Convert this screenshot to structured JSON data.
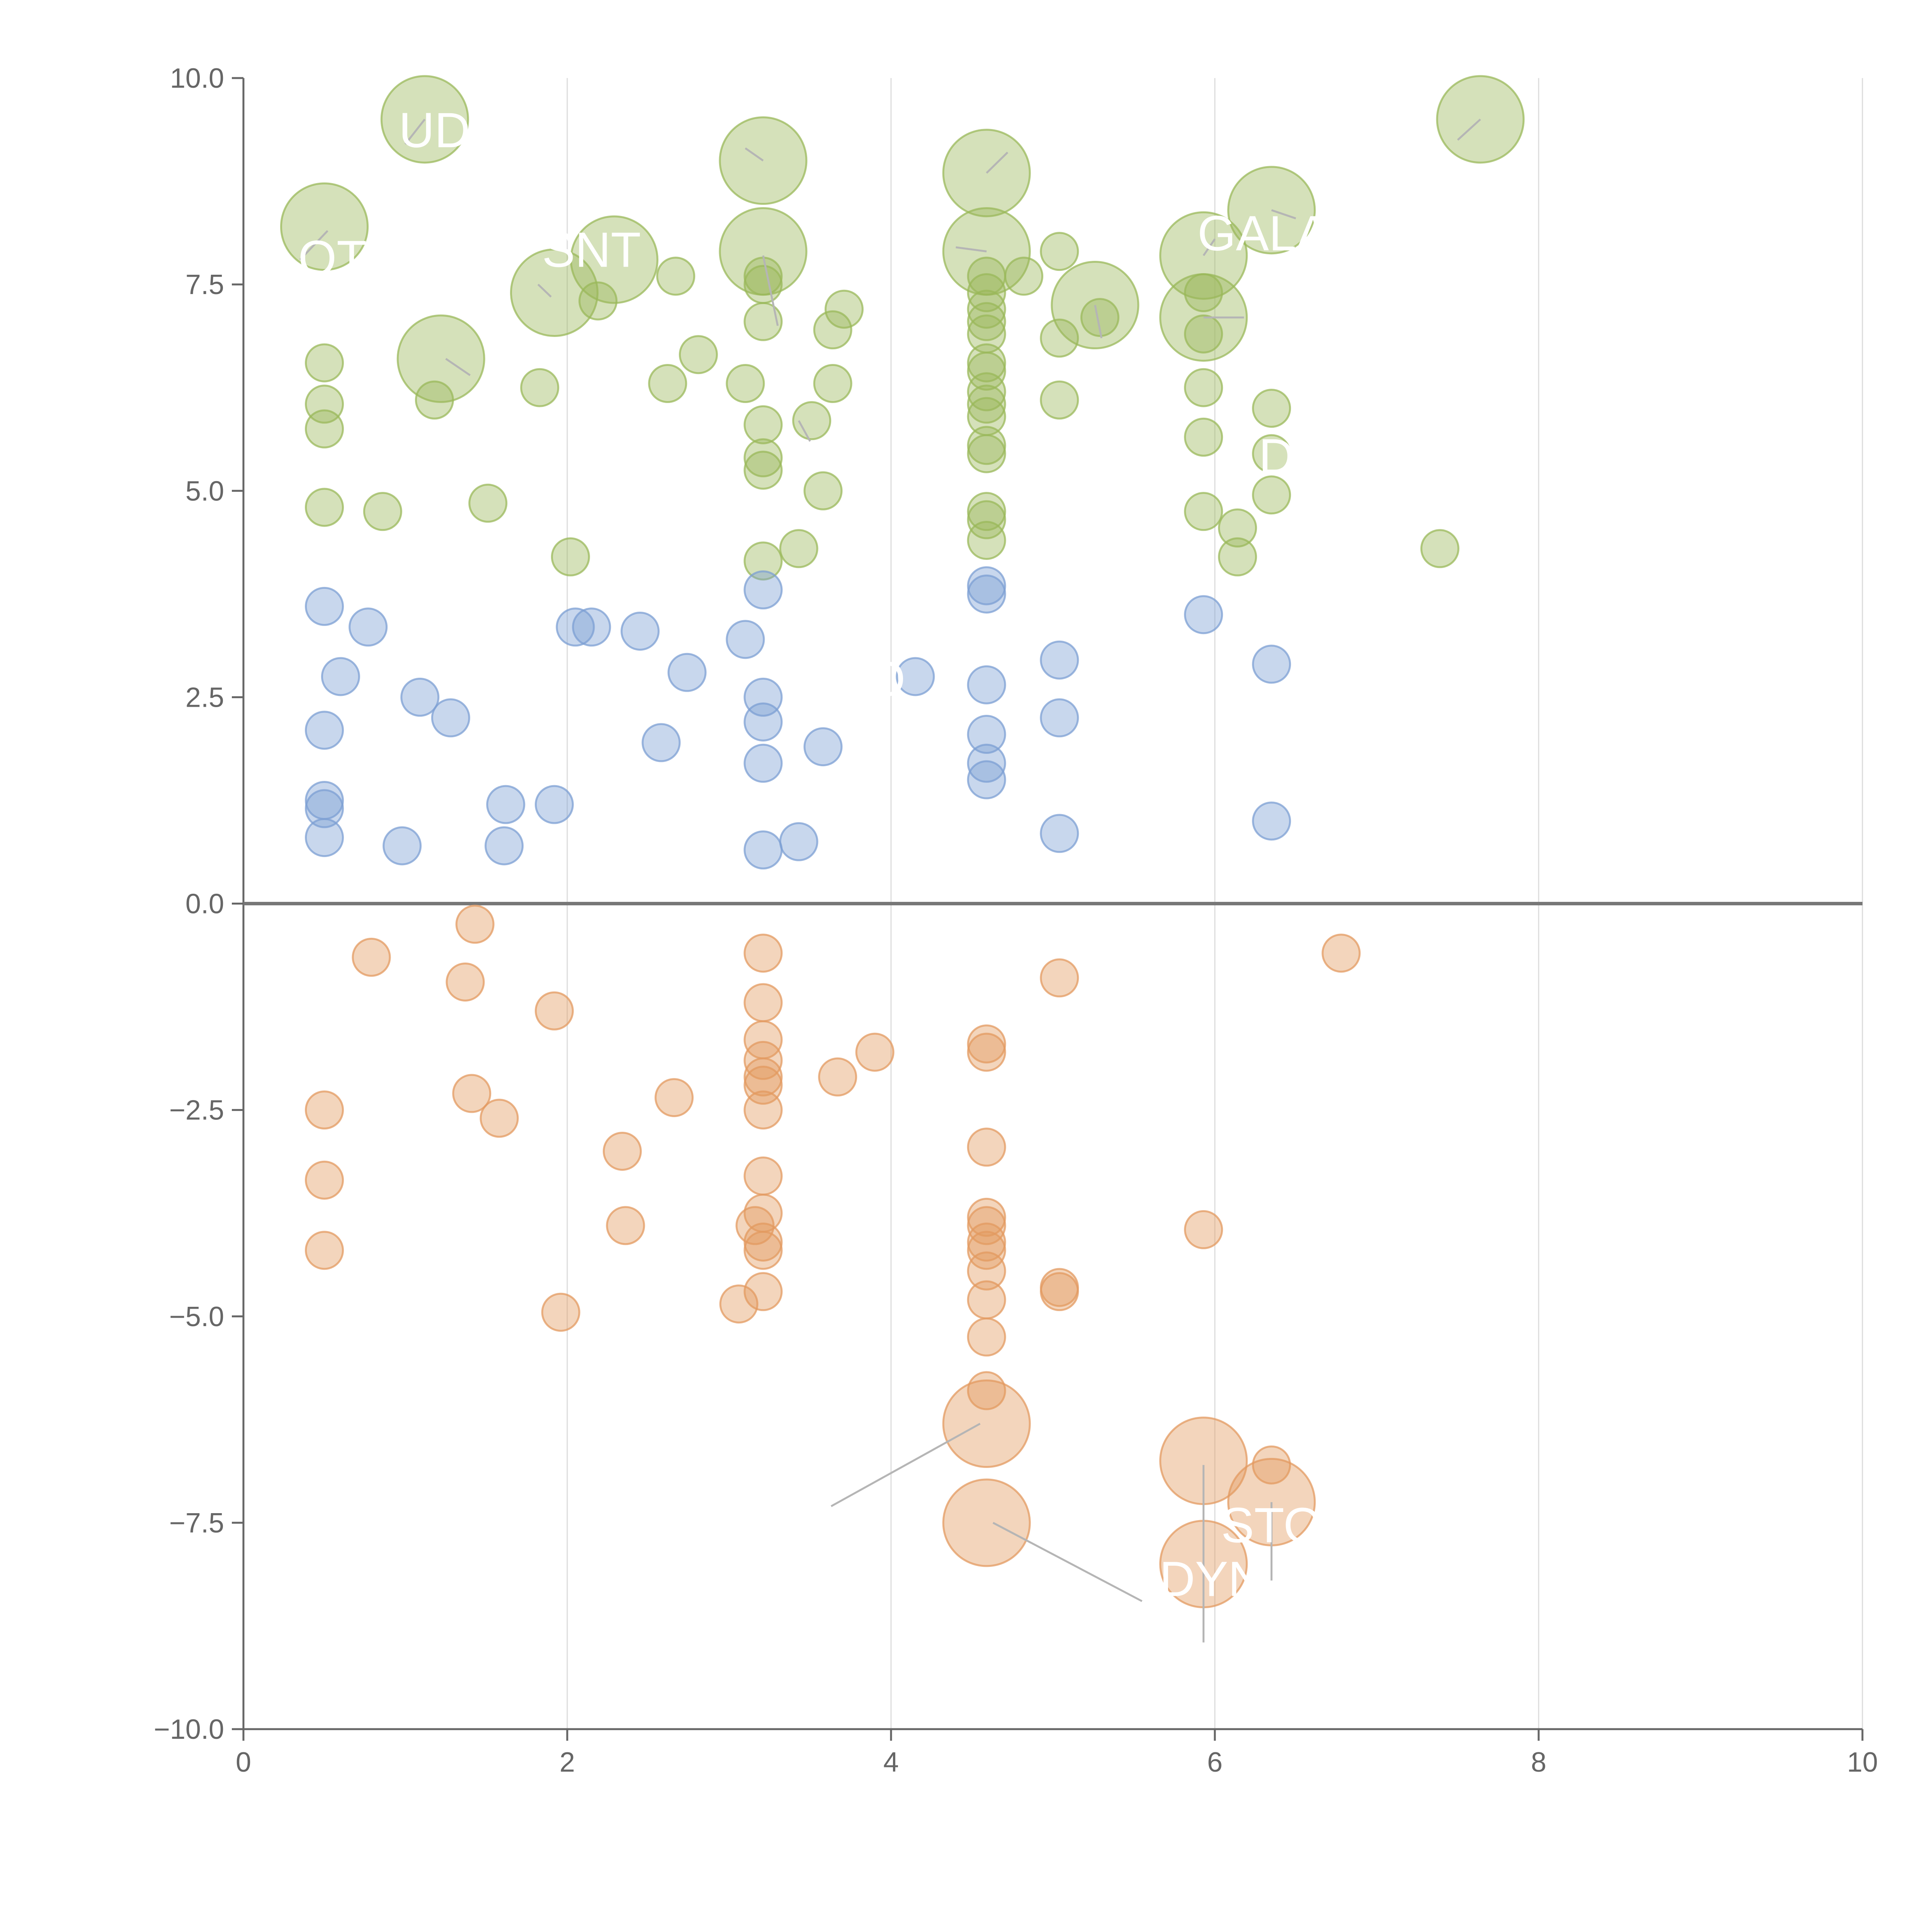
{
  "chart_data": {
    "type": "scatter",
    "title": "",
    "xlabel": "",
    "ylabel": "",
    "xlim": [
      0,
      10
    ],
    "ylim": [
      -10,
      10
    ],
    "x_ticks": [
      "0",
      "2",
      "4",
      "6",
      "8",
      "10"
    ],
    "y_ticks": [
      "10.0",
      "7.5",
      "5.0",
      "2.5",
      "0.0",
      "−2.5",
      "−5.0",
      "−7.5",
      "−10.0"
    ],
    "grid_x": true,
    "grid_y": false,
    "baseline_y": 0,
    "series": [
      {
        "name": "green",
        "color": "#9ab85a",
        "points": [
          [
            1.12,
            9.5,
            3
          ],
          [
            3.21,
            9.0,
            3
          ],
          [
            4.59,
            8.85,
            3
          ],
          [
            7.64,
            9.5,
            3
          ],
          [
            0.5,
            8.2,
            3
          ],
          [
            2.29,
            7.8,
            3
          ],
          [
            1.92,
            7.4,
            3
          ],
          [
            3.21,
            7.9,
            3
          ],
          [
            4.59,
            7.9,
            3
          ],
          [
            6.35,
            8.4,
            3
          ],
          [
            5.93,
            7.85,
            3
          ],
          [
            5.93,
            7.1,
            3
          ],
          [
            5.26,
            7.25,
            3
          ],
          [
            1.22,
            6.6,
            3
          ],
          [
            2.19,
            7.3,
            1
          ],
          [
            2.67,
            7.6,
            1
          ],
          [
            3.21,
            7.6,
            1
          ],
          [
            3.21,
            7.05,
            1
          ],
          [
            3.21,
            7.5,
            1
          ],
          [
            3.71,
            7.2,
            1
          ],
          [
            3.64,
            6.95,
            1
          ],
          [
            4.82,
            7.6,
            1
          ],
          [
            5.04,
            7.9,
            1
          ],
          [
            5.04,
            6.85,
            1
          ],
          [
            5.93,
            7.4,
            1
          ],
          [
            5.93,
            6.9,
            1
          ],
          [
            5.29,
            7.1,
            1
          ],
          [
            4.59,
            7.6,
            1
          ],
          [
            4.59,
            7.4,
            1
          ],
          [
            4.59,
            7.2,
            1
          ],
          [
            4.59,
            7.05,
            1
          ],
          [
            4.59,
            6.9,
            1
          ],
          [
            4.59,
            6.55,
            1
          ],
          [
            4.59,
            6.45,
            1
          ],
          [
            4.59,
            6.2,
            1
          ],
          [
            4.59,
            6.05,
            1
          ],
          [
            4.59,
            5.9,
            1
          ],
          [
            4.59,
            5.55,
            1
          ],
          [
            4.59,
            5.45,
            1
          ],
          [
            4.59,
            4.75,
            1
          ],
          [
            4.59,
            4.65,
            1
          ],
          [
            4.59,
            4.4,
            1
          ],
          [
            0.5,
            6.55,
            1
          ],
          [
            0.5,
            6.05,
            1
          ],
          [
            0.5,
            5.75,
            1
          ],
          [
            0.5,
            4.8,
            1
          ],
          [
            0.86,
            4.75,
            1
          ],
          [
            1.18,
            6.1,
            1
          ],
          [
            1.51,
            4.85,
            1
          ],
          [
            1.83,
            6.25,
            1
          ],
          [
            2.62,
            6.3,
            1
          ],
          [
            2.81,
            6.65,
            1
          ],
          [
            3.1,
            6.3,
            1
          ],
          [
            3.21,
            5.8,
            1
          ],
          [
            3.21,
            5.4,
            1
          ],
          [
            3.21,
            5.25,
            1
          ],
          [
            3.21,
            4.15,
            1
          ],
          [
            3.43,
            4.3,
            1
          ],
          [
            3.51,
            5.85,
            1
          ],
          [
            3.58,
            5.0,
            1
          ],
          [
            3.64,
            6.3,
            1
          ],
          [
            2.02,
            4.2,
            1
          ],
          [
            5.04,
            6.1,
            1
          ],
          [
            5.93,
            6.25,
            1
          ],
          [
            5.93,
            5.65,
            1
          ],
          [
            5.93,
            4.75,
            1
          ],
          [
            6.14,
            4.55,
            1
          ],
          [
            6.14,
            4.2,
            1
          ],
          [
            6.35,
            6.0,
            1
          ],
          [
            6.35,
            5.45,
            1
          ],
          [
            6.35,
            4.95,
            1
          ],
          [
            7.39,
            4.3,
            1
          ]
        ]
      },
      {
        "name": "blue",
        "color": "#7c9fd3",
        "points": [
          [
            0.5,
            3.6,
            1
          ],
          [
            0.5,
            2.1,
            1
          ],
          [
            0.5,
            1.25,
            1
          ],
          [
            0.5,
            1.15,
            1
          ],
          [
            0.5,
            0.8,
            1
          ],
          [
            0.6,
            2.75,
            1
          ],
          [
            0.77,
            3.35,
            1
          ],
          [
            0.98,
            0.7,
            1
          ],
          [
            1.09,
            2.5,
            1
          ],
          [
            1.28,
            2.25,
            1
          ],
          [
            1.61,
            0.7,
            1
          ],
          [
            1.62,
            1.2,
            1
          ],
          [
            1.92,
            1.2,
            1
          ],
          [
            2.05,
            3.35,
            1
          ],
          [
            2.15,
            3.35,
            1
          ],
          [
            2.45,
            3.3,
            1
          ],
          [
            2.58,
            1.95,
            1
          ],
          [
            2.74,
            2.8,
            1
          ],
          [
            3.1,
            3.2,
            1
          ],
          [
            3.21,
            3.8,
            1
          ],
          [
            3.21,
            2.5,
            1
          ],
          [
            3.21,
            2.2,
            1
          ],
          [
            3.21,
            1.7,
            1
          ],
          [
            3.21,
            0.65,
            1
          ],
          [
            3.43,
            0.75,
            1
          ],
          [
            3.58,
            1.9,
            1
          ],
          [
            4.15,
            2.75,
            1
          ],
          [
            4.59,
            3.85,
            1
          ],
          [
            4.59,
            3.75,
            1
          ],
          [
            4.59,
            2.65,
            1
          ],
          [
            4.59,
            2.05,
            1
          ],
          [
            4.59,
            1.7,
            1
          ],
          [
            4.59,
            1.5,
            1
          ],
          [
            5.04,
            2.95,
            1
          ],
          [
            5.04,
            2.25,
            1
          ],
          [
            5.04,
            0.85,
            1
          ],
          [
            5.93,
            3.5,
            1
          ],
          [
            6.35,
            2.9,
            1
          ],
          [
            6.35,
            1.0,
            1
          ]
        ]
      },
      {
        "name": "orange",
        "color": "#e39a60",
        "points": [
          [
            1.43,
            -0.25,
            1
          ],
          [
            0.79,
            -0.65,
            1
          ],
          [
            1.37,
            -0.95,
            1
          ],
          [
            1.92,
            -1.3,
            1
          ],
          [
            0.5,
            -2.5,
            1
          ],
          [
            0.5,
            -3.35,
            1
          ],
          [
            0.5,
            -4.2,
            1
          ],
          [
            1.41,
            -2.3,
            1
          ],
          [
            1.58,
            -2.6,
            1
          ],
          [
            2.34,
            -3.0,
            1
          ],
          [
            2.36,
            -3.9,
            1
          ],
          [
            1.96,
            -4.95,
            1
          ],
          [
            2.66,
            -2.35,
            1
          ],
          [
            3.21,
            -0.6,
            1
          ],
          [
            3.21,
            -1.2,
            1
          ],
          [
            3.21,
            -1.65,
            1
          ],
          [
            3.21,
            -1.9,
            1
          ],
          [
            3.21,
            -2.1,
            1
          ],
          [
            3.21,
            -2.2,
            1
          ],
          [
            3.21,
            -2.5,
            1
          ],
          [
            3.21,
            -3.3,
            1
          ],
          [
            3.21,
            -3.75,
            1
          ],
          [
            3.21,
            -4.1,
            1
          ],
          [
            3.21,
            -4.2,
            1
          ],
          [
            3.21,
            -4.7,
            1
          ],
          [
            3.16,
            -3.9,
            1
          ],
          [
            3.06,
            -4.85,
            1
          ],
          [
            3.67,
            -2.1,
            1
          ],
          [
            3.9,
            -1.8,
            1
          ],
          [
            4.59,
            -1.7,
            1
          ],
          [
            4.59,
            -1.8,
            1
          ],
          [
            4.59,
            -2.95,
            1
          ],
          [
            4.59,
            -3.8,
            1
          ],
          [
            4.59,
            -3.9,
            1
          ],
          [
            4.59,
            -4.1,
            1
          ],
          [
            4.59,
            -4.2,
            1
          ],
          [
            4.59,
            -4.45,
            1
          ],
          [
            4.59,
            -4.8,
            1
          ],
          [
            4.59,
            -5.25,
            1
          ],
          [
            4.59,
            -5.9,
            1
          ],
          [
            5.04,
            -0.9,
            1
          ],
          [
            5.04,
            -4.65,
            1
          ],
          [
            5.04,
            -4.7,
            1
          ],
          [
            5.93,
            -3.95,
            1
          ],
          [
            6.35,
            -6.8,
            1
          ],
          [
            6.78,
            -0.6,
            1
          ],
          [
            4.59,
            -6.3,
            3
          ],
          [
            4.59,
            -7.5,
            3
          ],
          [
            5.93,
            -6.75,
            3
          ],
          [
            5.93,
            -8.0,
            3
          ],
          [
            6.35,
            -7.25,
            3
          ]
        ]
      }
    ],
    "leader_lines": [
      [
        [
          0.35,
          7.8
        ],
        [
          0.52,
          8.15
        ]
      ],
      [
        [
          1.0,
          9.2
        ],
        [
          1.12,
          9.5
        ]
      ],
      [
        [
          1.82,
          7.5
        ],
        [
          1.9,
          7.35
        ]
      ],
      [
        [
          1.25,
          6.6
        ],
        [
          1.4,
          6.4
        ]
      ],
      [
        [
          3.1,
          9.15
        ],
        [
          3.21,
          9.0
        ]
      ],
      [
        [
          3.21,
          7.85
        ],
        [
          3.3,
          7.0
        ]
      ],
      [
        [
          3.43,
          5.85
        ],
        [
          3.5,
          5.6
        ]
      ],
      [
        [
          4.59,
          8.85
        ],
        [
          4.72,
          9.1
        ]
      ],
      [
        [
          4.59,
          7.9
        ],
        [
          4.4,
          7.95
        ]
      ],
      [
        [
          5.26,
          7.25
        ],
        [
          5.3,
          6.85
        ]
      ],
      [
        [
          5.93,
          7.85
        ],
        [
          6.0,
          8.05
        ]
      ],
      [
        [
          5.93,
          7.1
        ],
        [
          6.18,
          7.1
        ]
      ],
      [
        [
          6.35,
          8.4
        ],
        [
          6.5,
          8.3
        ]
      ],
      [
        [
          7.64,
          9.5
        ],
        [
          7.5,
          9.25
        ]
      ],
      [
        [
          4.55,
          -6.3
        ],
        [
          3.63,
          -7.3
        ]
      ],
      [
        [
          4.63,
          -7.5
        ],
        [
          5.55,
          -8.45
        ]
      ],
      [
        [
          5.93,
          -6.8
        ],
        [
          5.93,
          -8.95
        ]
      ],
      [
        [
          6.35,
          -7.25
        ],
        [
          6.35,
          -8.2
        ]
      ]
    ],
    "labels": [
      {
        "text": "UD",
        "x": 1.18,
        "y": 9.35
      },
      {
        "text": "OT",
        "x": 0.55,
        "y": 7.8
      },
      {
        "text": "SNT",
        "x": 2.15,
        "y": 7.9
      },
      {
        "text": "GALA",
        "x": 6.3,
        "y": 8.1
      },
      {
        "text": "DO",
        "x": 6.5,
        "y": 5.4
      },
      {
        "text": "O",
        "x": 3.97,
        "y": 2.7
      },
      {
        "text": "STO",
        "x": 6.35,
        "y": -7.55
      },
      {
        "text": "DYN",
        "x": 5.98,
        "y": -8.2
      }
    ]
  }
}
